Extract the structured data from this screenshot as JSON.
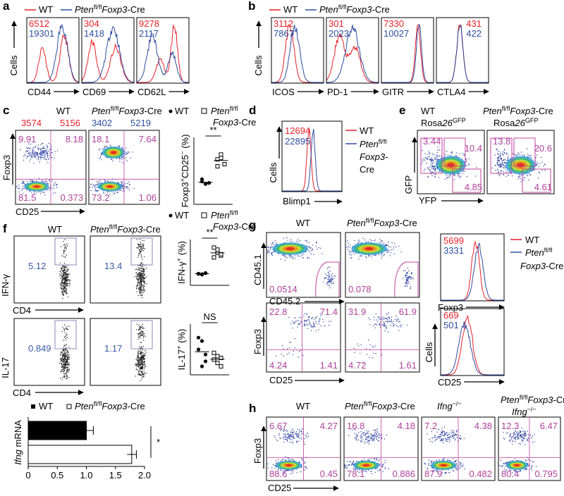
{
  "panel_labels": [
    "a",
    "b",
    "c",
    "d",
    "e",
    "f",
    "g",
    "h"
  ],
  "a": {
    "legend": {
      "wt": "WT",
      "pten": [
        "Pten",
        "fl/fl",
        "Foxp3",
        "-Cre"
      ]
    },
    "y_label": "Cells",
    "plots": [
      {
        "x_label": "CD44",
        "wt": 6512,
        "pten": 19301
      },
      {
        "x_label": "CD69",
        "wt": 304,
        "pten": 1418
      },
      {
        "x_label": "CD62L",
        "wt": 9278,
        "pten": 2117
      }
    ]
  },
  "b": {
    "legend": {
      "wt": "WT",
      "pten": [
        "Pten",
        "fl/fl",
        "Foxp3",
        "-Cre"
      ]
    },
    "y_label": "Cells",
    "plots": [
      {
        "x_label": "ICOS",
        "wt": 3112,
        "pten": 7867
      },
      {
        "x_label": "PD-1",
        "wt": 301,
        "pten": 2023
      },
      {
        "x_label": "GITR",
        "wt": 7330,
        "pten": 10027
      },
      {
        "x_label": "CTLA4",
        "wt": 431,
        "pten": 422
      }
    ]
  },
  "c": {
    "headers": [
      "WT",
      [
        "Pten",
        "fl/fl",
        "Foxp3",
        "-Cre"
      ]
    ],
    "mfi": [
      [
        3574,
        5156
      ],
      [
        3402,
        5219
      ]
    ],
    "y_label": "Foxp3",
    "x_label": "CD25",
    "quadrants": [
      [
        9.91,
        8.18,
        81.5,
        0.373
      ],
      [
        18.1,
        7.64,
        73.2,
        1.06
      ]
    ],
    "legend": {
      "wt": "WT",
      "pten": [
        "Pten",
        "fl/fl"
      ],
      "pten_2": [
        "Foxp3",
        "-Cre"
      ]
    },
    "dots": {
      "y_label": [
        "Foxp3",
        "+",
        "CD25",
        "−",
        " (%)"
      ],
      "significance": "**",
      "ylim": [
        0,
        25
      ],
      "wt": [
        8.5,
        7.6,
        8.0,
        9.4,
        7.7
      ],
      "pten": [
        16.8,
        17.3,
        15.0,
        14.2,
        18.6
      ]
    }
  },
  "d": {
    "y_label": "Cells",
    "x_label": "Blimp1",
    "wt": 12694,
    "pten": 22895,
    "legend": [
      "WT",
      [
        "Pten",
        "fl/fl"
      ],
      [
        "Foxp3",
        "-"
      ],
      "Cre"
    ]
  },
  "e": {
    "headers": [
      {
        "line1": "WT",
        "line2": [
          "Rosa",
          "26",
          "GFP"
        ]
      },
      {
        "line1": [
          "Pten",
          "fl/fl",
          "Foxp3",
          "-Cre"
        ],
        "line2": [
          "Rosa",
          "26",
          "GFP"
        ]
      }
    ],
    "y_label": "GFP",
    "x_label": "YFP",
    "gates": [
      [
        3.44,
        10.4,
        4.85
      ],
      [
        13.8,
        20.6,
        4.61
      ]
    ]
  },
  "f": {
    "headers": [
      "WT",
      [
        "Pten",
        "fl/fl",
        "Foxp3",
        "-Cre"
      ]
    ],
    "ifng": {
      "y_label": "IFN-γ",
      "x_label": "CD4",
      "gates": [
        5.12,
        13.4
      ]
    },
    "il17": {
      "y_label": "IL-17",
      "x_label": "CD4",
      "gates": [
        0.849,
        1.17
      ]
    },
    "legend": {
      "wt": "WT",
      "pten": [
        "Pten",
        "fl/fl"
      ],
      "pten_2": [
        "Foxp3",
        "-Cre"
      ]
    },
    "ifng_dots": {
      "y_label": [
        "IFN-γ",
        "+",
        " (%)"
      ],
      "significance": "**",
      "ylim": [
        0,
        20
      ],
      "wt": [
        5.0,
        4.7,
        5.3,
        5.1,
        4.9,
        5.4
      ],
      "pten": [
        16.5,
        14.2,
        13.0,
        12.2,
        15.6,
        13.6
      ]
    },
    "il17_dots": {
      "y_label": [
        "IL-17",
        "+",
        " (%)"
      ],
      "significance": "NS",
      "ylim": [
        0,
        3
      ],
      "wt": [
        2.2,
        2.0,
        1.2,
        1.5,
        0.5,
        0.8
      ],
      "pten": [
        1.3,
        1.1,
        1.0,
        0.9,
        0.7,
        0.5
      ]
    },
    "bar": {
      "legend": [
        "WT",
        [
          "Pten",
          "fl/fl",
          "Foxp3",
          "-Cre"
        ]
      ],
      "y_label": [
        "Ifng",
        " mRNA"
      ],
      "values": [
        1.0,
        1.78
      ],
      "errors": [
        0.12,
        0.08
      ],
      "xlim": [
        0,
        2
      ],
      "xticks": [
        0,
        0.5,
        {
          "value": 1,
          "label": "1.0"
        },
        1.5,
        {
          "value": 2,
          "label": "2.0"
        }
      ],
      "significance": "*"
    }
  },
  "g": {
    "headers": [
      "WT",
      [
        "Pten",
        "fl/fl",
        "Foxp3",
        "-Cre"
      ]
    ],
    "top": {
      "y_label": "CD45.1",
      "x_label": "CD45.2",
      "gates": [
        0.0514,
        0.078
      ]
    },
    "bottom": {
      "y_label": "Foxp3",
      "x_label": "CD25",
      "quadrants": [
        [
          22.8,
          71.4,
          4.24,
          1.41
        ],
        [
          31.9,
          61.9,
          4.72,
          1.61
        ]
      ]
    },
    "hist": {
      "y_label": "Cells",
      "legend": [
        "WT",
        [
          "Pten",
          "fl/fl"
        ],
        [
          "Foxp3",
          "-Cre"
        ]
      ],
      "plots": [
        {
          "x_label": "Foxp3",
          "wt": 5699,
          "pten": 3331
        },
        {
          "x_label": "CD25",
          "wt": 669,
          "pten": 501
        }
      ]
    }
  },
  "h": {
    "headers": [
      "WT",
      [
        "Pten",
        "fl/fl",
        "Foxp3",
        "-Cre"
      ],
      [
        "Ifng",
        "−/−"
      ],
      {
        "line1": [
          "Pten",
          "fl/fl",
          "Foxp3",
          "-Cre"
        ],
        "line2": [
          "Ifng",
          "−/−"
        ]
      }
    ],
    "y_label": "Foxp3",
    "x_label": "CD25",
    "quadrants": [
      [
        6.67,
        4.27,
        88.6,
        0.45
      ],
      [
        16.8,
        4.18,
        78.1,
        0.886
      ],
      [
        7.2,
        4.38,
        87.9,
        0.482
      ],
      [
        12.3,
        6.47,
        80.4,
        0.795
      ]
    ]
  }
}
